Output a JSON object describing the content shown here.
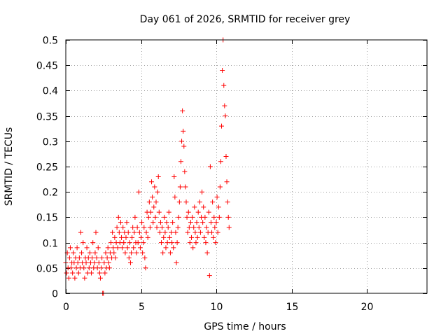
{
  "chart_data": {
    "type": "scatter",
    "title": "Day 061 of 2026, SRMTID for receiver grey",
    "xlabel": "GPS time / hours",
    "ylabel": "SRMTID / TECUs",
    "xlim": [
      0,
      24
    ],
    "ylim": [
      0,
      0.5
    ],
    "xticks": [
      0,
      5,
      10,
      15,
      20
    ],
    "xtick_labels": [
      "0",
      "5",
      "10",
      "15",
      "20"
    ],
    "yticks": [
      0,
      0.05,
      0.1,
      0.15,
      0.2,
      0.25,
      0.3,
      0.35,
      0.4,
      0.45,
      0.5
    ],
    "ytick_labels": [
      "0",
      "0.05",
      "0.1",
      "0.15",
      "0.2",
      "0.25",
      "0.3",
      "0.35",
      "0.4",
      "0.45",
      "0.5"
    ],
    "grid": true,
    "marker": "+",
    "color": "#ff0000",
    "series": [
      {
        "name": "SRMTID",
        "points": [
          [
            0.0,
            0.06
          ],
          [
            0.05,
            0.04
          ],
          [
            0.1,
            0.08
          ],
          [
            0.15,
            0.05
          ],
          [
            0.2,
            0.03
          ],
          [
            0.25,
            0.07
          ],
          [
            0.3,
            0.09
          ],
          [
            0.35,
            0.05
          ],
          [
            0.4,
            0.06
          ],
          [
            0.45,
            0.04
          ],
          [
            0.5,
            0.08
          ],
          [
            0.55,
            0.06
          ],
          [
            0.6,
            0.03
          ],
          [
            0.65,
            0.07
          ],
          [
            0.7,
            0.05
          ],
          [
            0.75,
            0.09
          ],
          [
            0.8,
            0.06
          ],
          [
            0.85,
            0.04
          ],
          [
            0.9,
            0.07
          ],
          [
            0.95,
            0.05
          ],
          [
            1.0,
            0.12
          ],
          [
            1.05,
            0.08
          ],
          [
            1.1,
            0.06
          ],
          [
            1.15,
            0.1
          ],
          [
            1.2,
            0.05
          ],
          [
            1.25,
            0.03
          ],
          [
            1.3,
            0.07
          ],
          [
            1.35,
            0.06
          ],
          [
            1.4,
            0.09
          ],
          [
            1.45,
            0.04
          ],
          [
            1.5,
            0.07
          ],
          [
            1.55,
            0.05
          ],
          [
            1.6,
            0.08
          ],
          [
            1.65,
            0.06
          ],
          [
            1.7,
            0.04
          ],
          [
            1.75,
            0.07
          ],
          [
            1.8,
            0.1
          ],
          [
            1.85,
            0.05
          ],
          [
            1.9,
            0.06
          ],
          [
            1.95,
            0.08
          ],
          [
            2.0,
            0.12
          ],
          [
            2.05,
            0.07
          ],
          [
            2.1,
            0.05
          ],
          [
            2.15,
            0.09
          ],
          [
            2.2,
            0.06
          ],
          [
            2.25,
            0.04
          ],
          [
            2.3,
            0.03
          ],
          [
            2.35,
            0.05
          ],
          [
            2.4,
            0.07
          ],
          [
            2.45,
            0.0
          ],
          [
            2.5,
            0.0
          ],
          [
            2.55,
            0.06
          ],
          [
            2.6,
            0.04
          ],
          [
            2.65,
            0.08
          ],
          [
            2.7,
            0.05
          ],
          [
            2.75,
            0.07
          ],
          [
            2.8,
            0.09
          ],
          [
            2.85,
            0.06
          ],
          [
            2.9,
            0.05
          ],
          [
            2.95,
            0.08
          ],
          [
            3.0,
            0.1
          ],
          [
            3.05,
            0.07
          ],
          [
            3.1,
            0.12
          ],
          [
            3.15,
            0.09
          ],
          [
            3.2,
            0.08
          ],
          [
            3.25,
            0.11
          ],
          [
            3.3,
            0.07
          ],
          [
            3.35,
            0.1
          ],
          [
            3.4,
            0.13
          ],
          [
            3.45,
            0.09
          ],
          [
            3.5,
            0.15
          ],
          [
            3.55,
            0.12
          ],
          [
            3.6,
            0.1
          ],
          [
            3.65,
            0.14
          ],
          [
            3.7,
            0.11
          ],
          [
            3.75,
            0.09
          ],
          [
            3.8,
            0.13
          ],
          [
            3.85,
            0.1
          ],
          [
            3.9,
            0.12
          ],
          [
            3.95,
            0.08
          ],
          [
            4.0,
            0.11
          ],
          [
            4.05,
            0.14
          ],
          [
            4.1,
            0.09
          ],
          [
            4.15,
            0.12
          ],
          [
            4.2,
            0.07
          ],
          [
            4.25,
            0.1
          ],
          [
            4.3,
            0.06
          ],
          [
            4.35,
            0.08
          ],
          [
            4.4,
            0.11
          ],
          [
            4.45,
            0.13
          ],
          [
            4.5,
            0.09
          ],
          [
            4.55,
            0.12
          ],
          [
            4.6,
            0.15
          ],
          [
            4.65,
            0.1
          ],
          [
            4.7,
            0.08
          ],
          [
            4.75,
            0.13
          ],
          [
            4.8,
            0.1
          ],
          [
            4.85,
            0.2
          ],
          [
            4.9,
            0.12
          ],
          [
            4.95,
            0.09
          ],
          [
            5.0,
            0.11
          ],
          [
            5.05,
            0.14
          ],
          [
            5.1,
            0.08
          ],
          [
            5.15,
            0.1
          ],
          [
            5.2,
            0.13
          ],
          [
            5.25,
            0.07
          ],
          [
            5.3,
            0.05
          ],
          [
            5.35,
            0.12
          ],
          [
            5.4,
            0.16
          ],
          [
            5.45,
            0.11
          ],
          [
            5.5,
            0.15
          ],
          [
            5.55,
            0.18
          ],
          [
            5.6,
            0.13
          ],
          [
            5.65,
            0.16
          ],
          [
            5.7,
            0.22
          ],
          [
            5.75,
            0.19
          ],
          [
            5.8,
            0.14
          ],
          [
            5.85,
            0.17
          ],
          [
            5.9,
            0.21
          ],
          [
            5.95,
            0.15
          ],
          [
            6.0,
            0.18
          ],
          [
            6.05,
            0.13
          ],
          [
            6.1,
            0.2
          ],
          [
            6.15,
            0.23
          ],
          [
            6.2,
            0.16
          ],
          [
            6.25,
            0.12
          ],
          [
            6.3,
            0.14
          ],
          [
            6.35,
            0.1
          ],
          [
            6.4,
            0.13
          ],
          [
            6.45,
            0.08
          ],
          [
            6.5,
            0.11
          ],
          [
            6.55,
            0.15
          ],
          [
            6.6,
            0.12
          ],
          [
            6.65,
            0.09
          ],
          [
            6.7,
            0.14
          ],
          [
            6.75,
            0.1
          ],
          [
            6.8,
            0.13
          ],
          [
            6.85,
            0.16
          ],
          [
            6.9,
            0.11
          ],
          [
            6.95,
            0.08
          ],
          [
            7.0,
            0.12
          ],
          [
            7.05,
            0.1
          ],
          [
            7.1,
            0.14
          ],
          [
            7.15,
            0.09
          ],
          [
            7.2,
            0.23
          ],
          [
            7.25,
            0.19
          ],
          [
            7.3,
            0.12
          ],
          [
            7.35,
            0.06
          ],
          [
            7.4,
            0.1
          ],
          [
            7.45,
            0.13
          ],
          [
            7.5,
            0.15
          ],
          [
            7.55,
            0.18
          ],
          [
            7.6,
            0.21
          ],
          [
            7.65,
            0.26
          ],
          [
            7.7,
            0.3
          ],
          [
            7.75,
            0.36
          ],
          [
            7.8,
            0.32
          ],
          [
            7.85,
            0.29
          ],
          [
            7.9,
            0.24
          ],
          [
            7.95,
            0.21
          ],
          [
            8.0,
            0.18
          ],
          [
            8.05,
            0.15
          ],
          [
            8.1,
            0.12
          ],
          [
            8.15,
            0.16
          ],
          [
            8.2,
            0.13
          ],
          [
            8.25,
            0.1
          ],
          [
            8.3,
            0.14
          ],
          [
            8.35,
            0.11
          ],
          [
            8.4,
            0.15
          ],
          [
            8.45,
            0.09
          ],
          [
            8.5,
            0.13
          ],
          [
            8.55,
            0.17
          ],
          [
            8.6,
            0.12
          ],
          [
            8.65,
            0.1
          ],
          [
            8.7,
            0.14
          ],
          [
            8.75,
            0.11
          ],
          [
            8.8,
            0.16
          ],
          [
            8.85,
            0.13
          ],
          [
            8.9,
            0.18
          ],
          [
            8.95,
            0.12
          ],
          [
            9.0,
            0.15
          ],
          [
            9.05,
            0.2
          ],
          [
            9.1,
            0.14
          ],
          [
            9.15,
            0.17
          ],
          [
            9.2,
            0.11
          ],
          [
            9.25,
            0.15
          ],
          [
            9.3,
            0.1
          ],
          [
            9.35,
            0.13
          ],
          [
            9.4,
            0.08
          ],
          [
            9.45,
            0.12
          ],
          [
            9.5,
            0.16
          ],
          [
            9.55,
            0.035
          ],
          [
            9.6,
            0.25
          ],
          [
            9.65,
            0.14
          ],
          [
            9.7,
            0.12
          ],
          [
            9.75,
            0.18
          ],
          [
            9.8,
            0.11
          ],
          [
            9.85,
            0.15
          ],
          [
            9.9,
            0.13
          ],
          [
            9.95,
            0.1
          ],
          [
            10.0,
            0.14
          ],
          [
            10.05,
            0.19
          ],
          [
            10.1,
            0.12
          ],
          [
            10.15,
            0.17
          ],
          [
            10.2,
            0.15
          ],
          [
            10.25,
            0.21
          ],
          [
            10.3,
            0.26
          ],
          [
            10.35,
            0.33
          ],
          [
            10.4,
            0.44
          ],
          [
            10.45,
            0.5
          ],
          [
            10.5,
            0.41
          ],
          [
            10.55,
            0.37
          ],
          [
            10.6,
            0.35
          ],
          [
            10.65,
            0.27
          ],
          [
            10.7,
            0.22
          ],
          [
            10.75,
            0.18
          ],
          [
            10.8,
            0.15
          ],
          [
            10.85,
            0.13
          ]
        ]
      }
    ]
  }
}
